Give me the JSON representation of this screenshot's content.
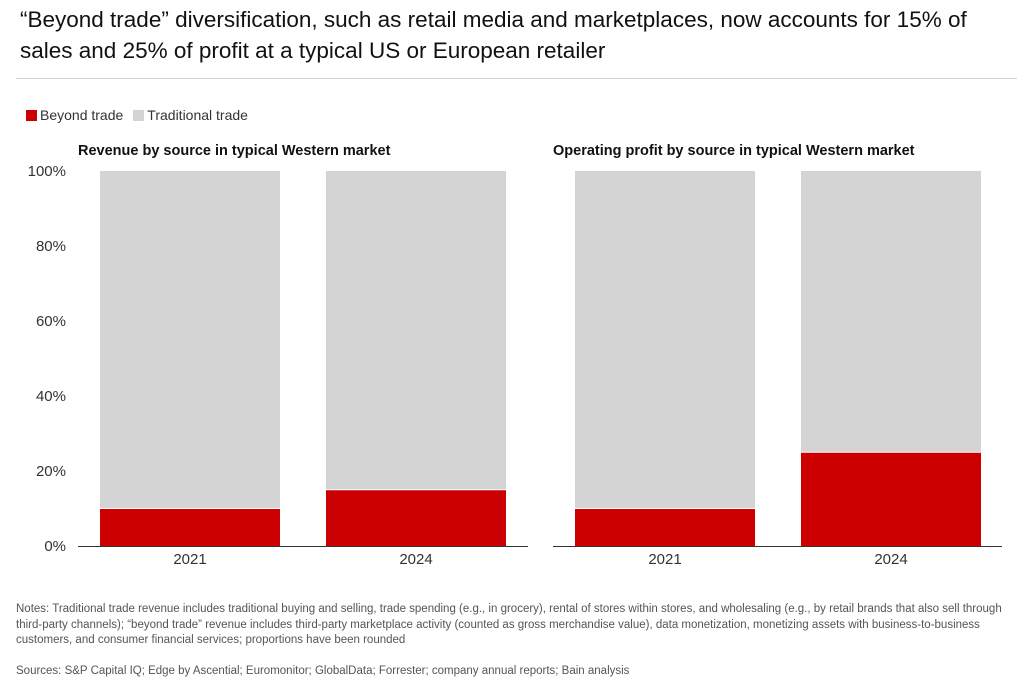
{
  "title": "“Beyond trade” diversification, such as retail media and marketplaces, now accounts for 15% of sales and 25% of profit at a typical US or European retailer",
  "legend": [
    {
      "label": "Beyond trade",
      "color": "#cc0000"
    },
    {
      "label": "Traditional trade",
      "color": "#d4d4d4"
    }
  ],
  "chart_data": [
    {
      "type": "bar",
      "stacked": true,
      "title": "Revenue by source in typical Western market",
      "categories": [
        "2021",
        "2024"
      ],
      "series": [
        {
          "name": "Beyond trade",
          "color": "#cc0000",
          "values": [
            10,
            15
          ]
        },
        {
          "name": "Traditional trade",
          "color": "#d4d4d4",
          "values": [
            90,
            85
          ]
        }
      ],
      "ylim": [
        0,
        100
      ],
      "yticks": [
        "0%",
        "20%",
        "40%",
        "60%",
        "80%",
        "100%"
      ],
      "legend": "top-left",
      "grid": false
    },
    {
      "type": "bar",
      "stacked": true,
      "title": "Operating profit by source in typical Western market",
      "categories": [
        "2021",
        "2024"
      ],
      "series": [
        {
          "name": "Beyond trade",
          "color": "#cc0000",
          "values": [
            10,
            25
          ]
        },
        {
          "name": "Traditional trade",
          "color": "#d4d4d4",
          "values": [
            90,
            75
          ]
        }
      ],
      "ylim": [
        0,
        100
      ],
      "legend": "top-left",
      "grid": false
    }
  ],
  "notes": "Notes: Traditional trade revenue includes traditional buying and selling, trade spending (e.g., in grocery), rental of stores within stores, and wholesaling (e.g., by retail brands that also sell through third-party channels); “beyond trade” revenue includes third-party marketplace activity (counted as gross merchandise value), data monetization, monetizing assets with business-to-business customers, and consumer financial services; proportions have been rounded",
  "sources": "Sources: S&P Capital IQ; Edge by Ascential; Euromonitor; GlobalData; Forrester; company annual reports; Bain analysis"
}
